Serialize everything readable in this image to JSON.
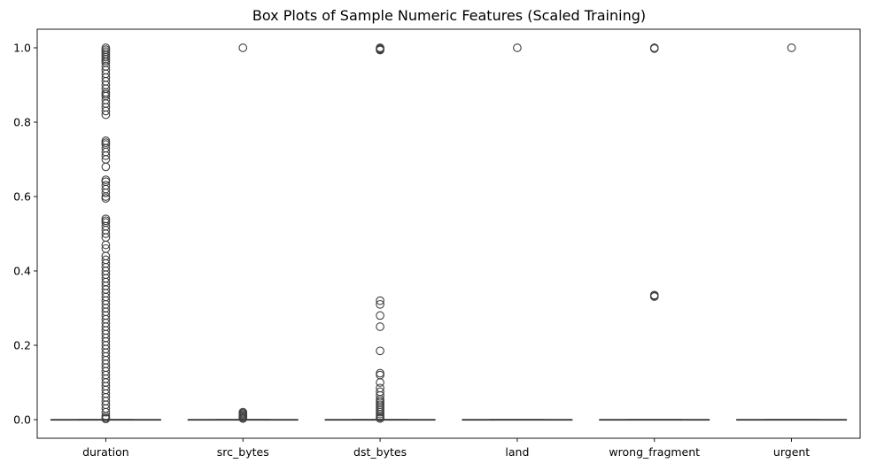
{
  "chart_data": {
    "type": "box",
    "title": "Box Plots of Sample Numeric Features (Scaled Training)",
    "xlabel": "",
    "ylabel": "",
    "ylim": [
      -0.05,
      1.05
    ],
    "yticks": [
      0.0,
      0.2,
      0.4,
      0.6,
      0.8,
      1.0
    ],
    "ytick_labels": [
      "0.0",
      "0.2",
      "0.4",
      "0.6",
      "0.8",
      "1.0"
    ],
    "grid": false,
    "categories": [
      "duration",
      "src_bytes",
      "dst_bytes",
      "land",
      "wrong_fragment",
      "urgent"
    ],
    "boxes": [
      {
        "category": "duration",
        "q1": 0,
        "median": 0,
        "q3": 0,
        "whisker_low": 0,
        "whisker_high": 0,
        "outliers": [
          1.0,
          0.995,
          0.99,
          0.985,
          0.98,
          0.975,
          0.97,
          0.965,
          0.96,
          0.95,
          0.94,
          0.93,
          0.92,
          0.91,
          0.9,
          0.89,
          0.88,
          0.875,
          0.87,
          0.86,
          0.85,
          0.84,
          0.83,
          0.82,
          0.75,
          0.745,
          0.74,
          0.73,
          0.72,
          0.71,
          0.7,
          0.68,
          0.645,
          0.64,
          0.63,
          0.62,
          0.61,
          0.6,
          0.595,
          0.54,
          0.535,
          0.53,
          0.52,
          0.51,
          0.5,
          0.49,
          0.47,
          0.46,
          0.44,
          0.43,
          0.42,
          0.41,
          0.4,
          0.39,
          0.38,
          0.37,
          0.36,
          0.35,
          0.34,
          0.33,
          0.32,
          0.31,
          0.3,
          0.29,
          0.28,
          0.27,
          0.26,
          0.25,
          0.24,
          0.23,
          0.22,
          0.21,
          0.2,
          0.19,
          0.18,
          0.17,
          0.16,
          0.15,
          0.14,
          0.13,
          0.12,
          0.11,
          0.1,
          0.09,
          0.08,
          0.07,
          0.06,
          0.05,
          0.04,
          0.03,
          0.02,
          0.01,
          0.005,
          0.002
        ]
      },
      {
        "category": "src_bytes",
        "q1": 0,
        "median": 0,
        "q3": 0,
        "whisker_low": 0,
        "whisker_high": 0,
        "outliers": [
          1.0,
          0.02,
          0.017,
          0.014,
          0.011,
          0.008,
          0.005,
          0.003
        ]
      },
      {
        "category": "dst_bytes",
        "q1": 0,
        "median": 0,
        "q3": 0,
        "whisker_low": 0,
        "whisker_high": 0,
        "outliers": [
          1.0,
          0.998,
          0.996,
          0.994,
          0.32,
          0.31,
          0.28,
          0.25,
          0.185,
          0.125,
          0.12,
          0.1,
          0.085,
          0.075,
          0.065,
          0.055,
          0.05,
          0.045,
          0.04,
          0.035,
          0.03,
          0.025,
          0.02,
          0.015,
          0.01,
          0.006,
          0.003
        ]
      },
      {
        "category": "land",
        "q1": 0,
        "median": 0,
        "q3": 0,
        "whisker_low": 0,
        "whisker_high": 0,
        "outliers": [
          1.0
        ]
      },
      {
        "category": "wrong_fragment",
        "q1": 0,
        "median": 0,
        "q3": 0,
        "whisker_low": 0,
        "whisker_high": 0,
        "outliers": [
          1.0,
          0.999,
          0.998,
          0.335,
          0.333,
          0.331
        ]
      },
      {
        "category": "urgent",
        "q1": 0,
        "median": 0,
        "q3": 0,
        "whisker_low": 0,
        "whisker_high": 0,
        "outliers": [
          1.0
        ]
      }
    ],
    "colors": {
      "line": "#3f3f3f",
      "box_fill": "#ffffff",
      "axis": "#000000"
    }
  }
}
